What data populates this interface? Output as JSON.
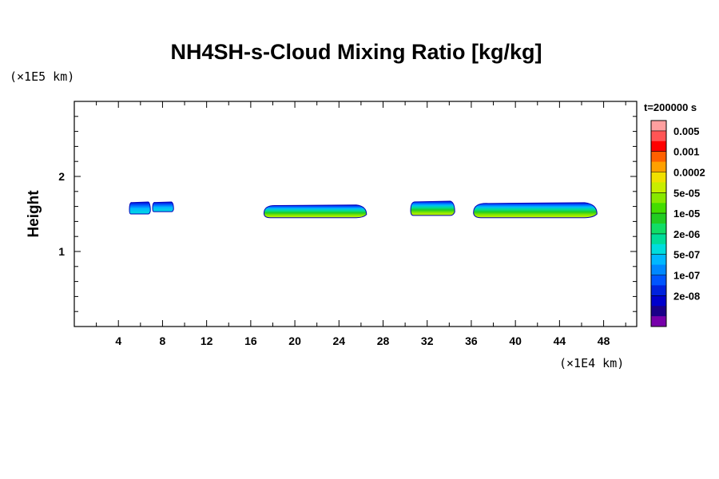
{
  "chart_data": {
    "type": "heatmap",
    "title": "NH4SH-s-Cloud Mixing Ratio [kg/kg]",
    "xlabel": "",
    "ylabel": "Height",
    "x_unit": "(×1E4 km)",
    "y_unit": "(×1E5 km)",
    "time_label": "t=200000 s",
    "xlim": [
      0,
      51
    ],
    "ylim": [
      0,
      3
    ],
    "x_ticks": [
      4,
      8,
      12,
      16,
      20,
      24,
      28,
      32,
      36,
      40,
      44,
      48
    ],
    "y_ticks": [
      1,
      2
    ],
    "colorbar": {
      "labels": [
        "0.005",
        "0.001",
        "0.0002",
        "5e-05",
        "1e-05",
        "2e-06",
        "5e-07",
        "1e-07",
        "2e-08"
      ],
      "colors": [
        "#ff9f9f",
        "#ff5555",
        "#ff0000",
        "#ff6000",
        "#ffa000",
        "#f0e000",
        "#c8ee00",
        "#88e800",
        "#44dd00",
        "#22cc22",
        "#11dd66",
        "#00dd99",
        "#00dddd",
        "#00b8ff",
        "#0088ff",
        "#0055ff",
        "#0022dd",
        "#0000cc",
        "#1a0088",
        "#7700aa"
      ]
    },
    "clouds": [
      {
        "x0": 5.0,
        "x1": 6.9,
        "top": 1.66,
        "base": 1.5,
        "max": "5e-07"
      },
      {
        "x0": 7.1,
        "x1": 9.0,
        "top": 1.66,
        "base": 1.53,
        "max": "5e-07"
      },
      {
        "x0": 17.2,
        "x1": 26.5,
        "top": 1.62,
        "base": 1.45,
        "max": "5e-05"
      },
      {
        "x0": 30.5,
        "x1": 34.5,
        "top": 1.67,
        "base": 1.48,
        "max": "1e-05"
      },
      {
        "x0": 36.2,
        "x1": 47.4,
        "top": 1.65,
        "base": 1.45,
        "max": "5e-05"
      }
    ]
  }
}
